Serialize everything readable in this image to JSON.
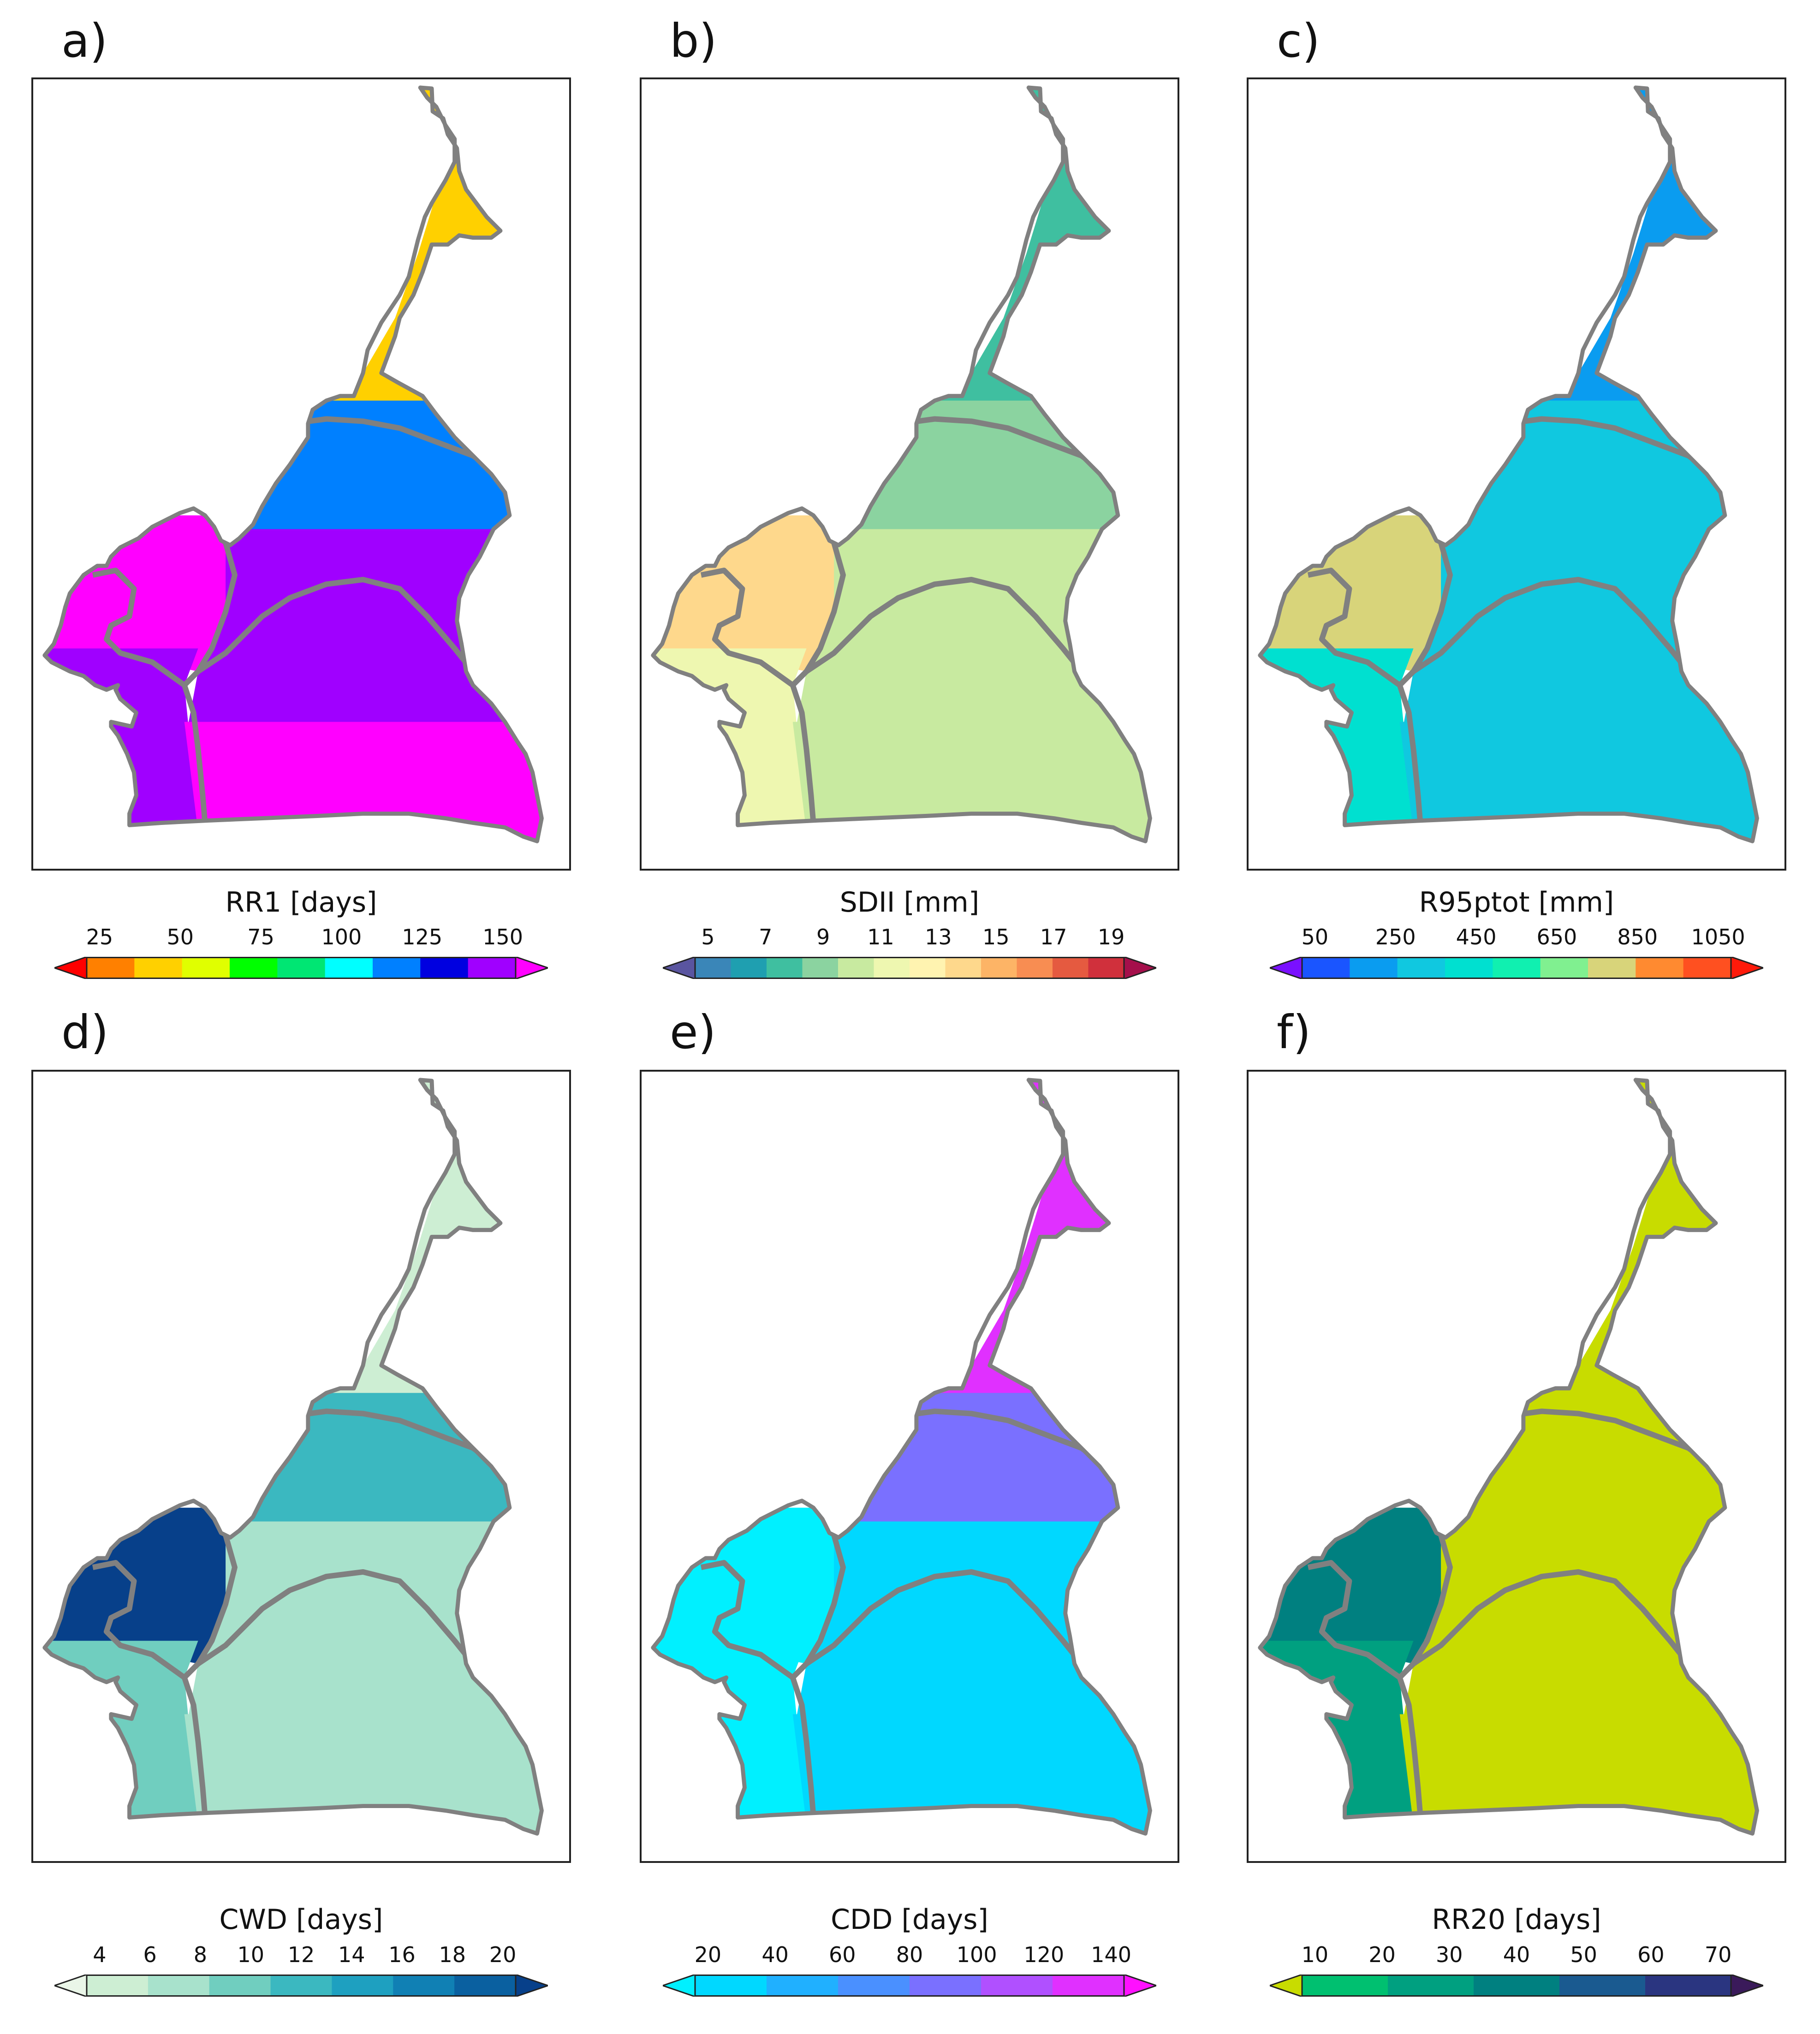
{
  "panels": [
    {
      "letter": "a)",
      "colorbar": {
        "title": "RR1 [days]",
        "ticks": [
          "25",
          "50",
          "75",
          "100",
          "125",
          "150"
        ],
        "colors": [
          "#ff0000",
          "#ff8000",
          "#ffd000",
          "#e0ff00",
          "#00ff00",
          "#00e673",
          "#00ffff",
          "#0080ff",
          "#0000e0",
          "#a000ff",
          "#ff00ff"
        ]
      },
      "regions": {
        "north": 2,
        "mid": 7,
        "center": 9,
        "west": 10,
        "south": 9,
        "southeast": 10
      }
    },
    {
      "letter": "b)",
      "colorbar": {
        "title": "SDII [mm]",
        "ticks": [
          "5",
          "7",
          "9",
          "11",
          "13",
          "15",
          "17",
          "19"
        ],
        "colors": [
          "#5a55a0",
          "#3a86b8",
          "#1f9fb0",
          "#3fbfa0",
          "#8bd3a0",
          "#c8eaa0",
          "#eef7b0",
          "#fff3b0",
          "#fed88c",
          "#fdb466",
          "#f88d52",
          "#e55a40",
          "#d0303c",
          "#a50f4b"
        ]
      },
      "regions": {
        "north": 3,
        "mid": 4,
        "center": 5,
        "west": 8,
        "south": 6,
        "southeast": 5
      }
    },
    {
      "letter": "c)",
      "colorbar": {
        "title": "R95ptot [mm]",
        "ticks": [
          "50",
          "250",
          "450",
          "650",
          "850",
          "1050"
        ],
        "colors": [
          "#7a10ff",
          "#1a55ff",
          "#0a9cf0",
          "#10c8e0",
          "#00e0d0",
          "#10f0b0",
          "#80f090",
          "#d8d47a",
          "#ff8a30",
          "#ff5020",
          "#ff1a0a"
        ]
      },
      "regions": {
        "north": 2,
        "mid": 3,
        "center": 3,
        "west": 7,
        "south": 4,
        "southeast": 3
      }
    },
    {
      "letter": "d)",
      "colorbar": {
        "title": "CWD [days]",
        "ticks": [
          "4",
          "6",
          "8",
          "10",
          "12",
          "14",
          "16",
          "18",
          "20"
        ],
        "colors": [
          "#eaf6e8",
          "#cdeed3",
          "#a8e2cc",
          "#70cebf",
          "#3bb8c0",
          "#1ea0c0",
          "#1080b4",
          "#0a60a0",
          "#07408a"
        ]
      },
      "regions": {
        "north": 1,
        "mid": 4,
        "center": 2,
        "west": 8,
        "south": 3,
        "southeast": 2
      }
    },
    {
      "letter": "e)",
      "colorbar": {
        "title": "CDD [days]",
        "ticks": [
          "20",
          "40",
          "60",
          "80",
          "100",
          "120",
          "140"
        ],
        "colors": [
          "#00f0ff",
          "#00d8ff",
          "#20b0ff",
          "#4a90ff",
          "#7a70ff",
          "#b050ff",
          "#e030ff",
          "#ff10ff"
        ]
      },
      "regions": {
        "north": 6,
        "mid": 4,
        "center": 1,
        "west": 0,
        "south": 0,
        "southeast": 1
      }
    },
    {
      "letter": "f)",
      "colorbar": {
        "title": "RR20 [days]",
        "ticks": [
          "10",
          "20",
          "30",
          "40",
          "50",
          "60",
          "70"
        ],
        "colors": [
          "#c8dc00",
          "#00c070",
          "#00a080",
          "#008080",
          "#1a5a90",
          "#2a3580",
          "#3a1a5a"
        ]
      },
      "regions": {
        "north": 0,
        "mid": 0,
        "center": 0,
        "west": 3,
        "south": 2,
        "southeast": 0
      }
    }
  ],
  "chart_data": [
    {
      "type": "heatmap",
      "panel": "a)",
      "variable": "RR1",
      "unit": "days",
      "colorbar_ticks": [
        25,
        50,
        75,
        100,
        125,
        150
      ]
    },
    {
      "type": "heatmap",
      "panel": "b)",
      "variable": "SDII",
      "unit": "mm",
      "colorbar_ticks": [
        5,
        7,
        9,
        11,
        13,
        15,
        17,
        19
      ]
    },
    {
      "type": "heatmap",
      "panel": "c)",
      "variable": "R95ptot",
      "unit": "mm",
      "colorbar_ticks": [
        50,
        250,
        450,
        650,
        850,
        1050
      ]
    },
    {
      "type": "heatmap",
      "panel": "d)",
      "variable": "CWD",
      "unit": "days",
      "colorbar_ticks": [
        4,
        6,
        8,
        10,
        12,
        14,
        16,
        18,
        20
      ]
    },
    {
      "type": "heatmap",
      "panel": "e)",
      "variable": "CDD",
      "unit": "days",
      "colorbar_ticks": [
        20,
        40,
        60,
        80,
        100,
        120,
        140
      ]
    },
    {
      "type": "heatmap",
      "panel": "f)",
      "variable": "RR20",
      "unit": "days",
      "colorbar_ticks": [
        10,
        20,
        30,
        40,
        50,
        60,
        70
      ]
    }
  ],
  "styles": {
    "boundary_color": "#808080",
    "outline_color": "#808080"
  }
}
